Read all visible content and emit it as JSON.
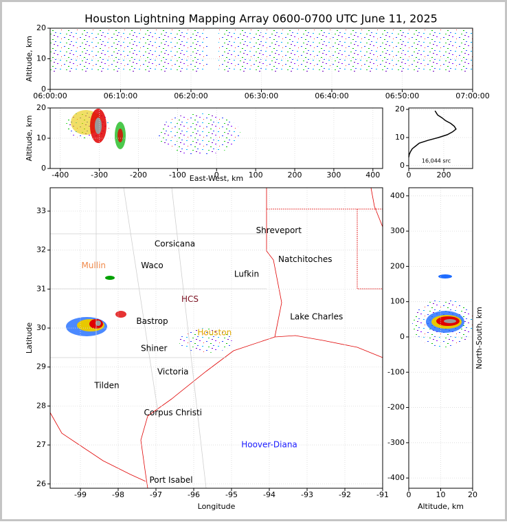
{
  "chart_data": [
    {
      "type": "scatter",
      "title": "Houston Lightning Mapping Array 0600-0700 UTC June 11, 2025",
      "ylabel": "Altitude, km",
      "xlim": [
        0,
        3600
      ],
      "ylim": [
        0,
        20
      ],
      "yticks": [
        0,
        10,
        20
      ],
      "xticks": [
        {
          "value": 0,
          "label": "06:00:00"
        },
        {
          "value": 600,
          "label": "06:10:00"
        },
        {
          "value": 1200,
          "label": "06:20:00"
        },
        {
          "value": 1800,
          "label": "06:30:00"
        },
        {
          "value": 2400,
          "label": "06:40:00"
        },
        {
          "value": 3000,
          "label": "06:50:00"
        },
        {
          "value": 3600,
          "label": "07:00:00"
        }
      ],
      "grid": true
    },
    {
      "type": "scatter",
      "xlabel": "East-West, km",
      "ylabel": "Altitude, km",
      "xlim": [
        -426,
        425
      ],
      "ylim": [
        0,
        20
      ],
      "xticks": [
        -400,
        -300,
        -200,
        -100,
        0,
        100,
        200,
        300,
        400
      ],
      "yticks": [
        0,
        10,
        20
      ],
      "grid": true
    },
    {
      "type": "line",
      "annotation": "16,044 src",
      "xlim": [
        0,
        365
      ],
      "ylim": [
        -1,
        20.5
      ],
      "xticks": [
        0,
        200
      ],
      "yticks": [
        0,
        10,
        20
      ],
      "color": "#000000",
      "x": [
        150,
        165,
        190,
        210,
        240,
        260,
        270,
        250,
        220,
        170,
        110,
        60,
        40,
        20,
        10,
        3,
        0
      ],
      "values": [
        19.5,
        18,
        17,
        16,
        15,
        14,
        13,
        12,
        11,
        10,
        9,
        8,
        7,
        6,
        5,
        4,
        3
      ],
      "grid": true
    },
    {
      "type": "map",
      "xlabel": "Longitude",
      "ylabel": "Latitude",
      "xlim": [
        -99.8,
        -91
      ],
      "ylim": [
        25.89,
        33.6
      ],
      "xticks": [
        -99,
        -98,
        -97,
        -96,
        -95,
        -94,
        -93,
        -92,
        -91
      ],
      "yticks": [
        26,
        27,
        28,
        29,
        30,
        31,
        32,
        33
      ],
      "labels": [
        {
          "text": "Shreveport",
          "lon": -93.75,
          "lat": 32.5,
          "color": "#000000"
        },
        {
          "text": "Corsicana",
          "lon": -96.5,
          "lat": 32.15,
          "color": "#000000"
        },
        {
          "text": "Natchitoches",
          "lon": -93.05,
          "lat": 31.76,
          "color": "#000000"
        },
        {
          "text": "Mullin",
          "lon": -98.65,
          "lat": 31.6,
          "color": "#f08a4b"
        },
        {
          "text": "Waco",
          "lon": -97.1,
          "lat": 31.6,
          "color": "#000000"
        },
        {
          "text": "Lufkin",
          "lon": -94.6,
          "lat": 31.38,
          "color": "#000000"
        },
        {
          "text": "HCS",
          "lon": -96.1,
          "lat": 30.73,
          "color": "#7a1020"
        },
        {
          "text": "Bastrop",
          "lon": -97.1,
          "lat": 30.17,
          "color": "#000000"
        },
        {
          "text": "Lake Charles",
          "lon": -92.75,
          "lat": 30.28,
          "color": "#000000"
        },
        {
          "text": "Houston",
          "lon": -95.45,
          "lat": 29.88,
          "color": "#e0a800"
        },
        {
          "text": "Shiner",
          "lon": -97.05,
          "lat": 29.47,
          "color": "#000000"
        },
        {
          "text": "Victoria",
          "lon": -96.55,
          "lat": 28.87,
          "color": "#000000"
        },
        {
          "text": "Tilden",
          "lon": -98.3,
          "lat": 28.52,
          "color": "#000000"
        },
        {
          "text": "Corpus Christi",
          "lon": -96.55,
          "lat": 27.82,
          "color": "#000000"
        },
        {
          "text": "Hoover-Diana",
          "lon": -94,
          "lat": 27.0,
          "color": "#1a1aff"
        },
        {
          "text": "Port Isabel",
          "lon": -96.6,
          "lat": 26.09,
          "color": "#000000"
        }
      ],
      "grid": true
    },
    {
      "type": "scatter",
      "xlabel": "Altitude, km",
      "ylabel": "North-South, km",
      "xlim": [
        0,
        20
      ],
      "ylim": [
        -429,
        423
      ],
      "xticks": [
        0,
        10,
        20
      ],
      "yticks": [
        -400,
        -300,
        -200,
        -100,
        0,
        100,
        200,
        300,
        400
      ],
      "grid": true
    }
  ]
}
